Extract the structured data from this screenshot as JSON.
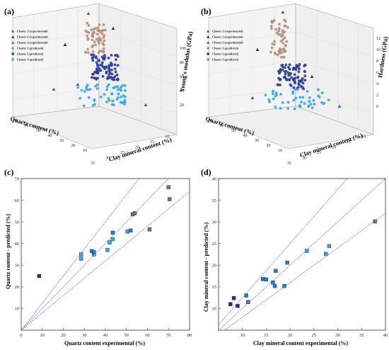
{
  "colors": {
    "cluster1_exp": "#4a5a78",
    "cluster2_exp": "#1c2f73",
    "cluster3_exp": "#1d6fa8",
    "cluster1_pred": "#b7917c",
    "cluster2_pred": "#2e3f97",
    "cluster3_pred": "#3aa8e6",
    "scatter_brown": "#8f6b5c",
    "scatter_light": "#3ba6e0",
    "scatter_mid": "#2a7fc4",
    "scatter_dark": "#1f3a77",
    "guide_line": "#4848b0",
    "box": "#999999"
  },
  "legend_labels": [
    "Cluster 1 (experimental)",
    "Cluster 2 (experimental)",
    "Cluster 3 (experimental)",
    "Cluster 1 (predicted)",
    "Cluster 2 (predicted)",
    "Cluster 3 (predicted)"
  ],
  "chart_data": [
    {
      "panel": "(a)",
      "type": "scatter",
      "dimensions": 3,
      "axes": {
        "x_label": "Quartz content (%)",
        "x_ticks": [
          "70",
          "60",
          "50",
          "40",
          "30",
          "20",
          "10"
        ],
        "y_label": "Clay mineral content (%)",
        "y_ticks": [
          "35",
          "30",
          "25",
          "20",
          "15",
          "10"
        ],
        "z_label": "Young's modulus (GPa)",
        "z_ticks": [
          "20",
          "40",
          "60",
          "80",
          "100"
        ]
      },
      "legend_placement": "top-left"
    },
    {
      "panel": "(b)",
      "type": "scatter",
      "dimensions": 3,
      "axes": {
        "x_label": "Quartz content (%)",
        "x_ticks": [
          "70",
          "60",
          "50",
          "40",
          "30",
          "20",
          "10"
        ],
        "y_label": "Clay mineral content (%)",
        "y_ticks": [
          "35",
          "30",
          "25",
          "20",
          "15",
          "10"
        ],
        "z_label": "Hardness (GPa)",
        "z_ticks": [
          "0",
          "2",
          "4",
          "6",
          "8",
          "10",
          "12"
        ]
      },
      "legend_placement": "top-left"
    },
    {
      "panel": "(c)",
      "type": "scatter",
      "xlabel": "Quartz content experimental (%)",
      "ylabel": "Quartz content - predicted (%)",
      "xlim": [
        0,
        80
      ],
      "ylim": [
        0,
        70
      ],
      "xticks": [
        0,
        10,
        20,
        30,
        40,
        50,
        60,
        70,
        80
      ],
      "yticks": [
        10,
        20,
        30,
        40,
        50,
        60,
        70
      ],
      "guide_lines_slopes": [
        1.25,
        1.0,
        0.8
      ],
      "points": [
        {
          "x": 8.5,
          "y": 25,
          "c": "dark"
        },
        {
          "x": 28.5,
          "y": 33,
          "c": "light"
        },
        {
          "x": 28.5,
          "y": 35,
          "c": "light"
        },
        {
          "x": 33.5,
          "y": 36.5,
          "c": "mid"
        },
        {
          "x": 34.5,
          "y": 35,
          "c": "light"
        },
        {
          "x": 34.5,
          "y": 36,
          "c": "mid"
        },
        {
          "x": 41,
          "y": 37,
          "c": "light"
        },
        {
          "x": 42,
          "y": 40.5,
          "c": "light"
        },
        {
          "x": 43.5,
          "y": 42,
          "c": "light"
        },
        {
          "x": 43.5,
          "y": 45,
          "c": "mid"
        },
        {
          "x": 50.5,
          "y": 45.5,
          "c": "light"
        },
        {
          "x": 52,
          "y": 46,
          "c": "mid"
        },
        {
          "x": 53,
          "y": 53.5,
          "c": "mid"
        },
        {
          "x": 54,
          "y": 54,
          "c": "brown"
        },
        {
          "x": 61,
          "y": 46.5,
          "c": "brown"
        },
        {
          "x": 70,
          "y": 66,
          "c": "brown"
        },
        {
          "x": 70.5,
          "y": 60.5,
          "c": "brown"
        }
      ]
    },
    {
      "panel": "(d)",
      "type": "scatter",
      "xlabel": "Clay mineral content experimental (%)",
      "ylabel": "Clay mineral content - predicted (%)",
      "xlim": [
        5,
        40
      ],
      "ylim": [
        5,
        40
      ],
      "xticks": [
        10,
        15,
        20,
        25,
        30,
        35,
        40
      ],
      "yticks": [
        10,
        15,
        20,
        25,
        30,
        35,
        40
      ],
      "guide_lines_slopes": [
        1.25,
        1.0,
        0.8
      ],
      "points": [
        {
          "x": 7.5,
          "y": 11,
          "c": "dark"
        },
        {
          "x": 8.2,
          "y": 12.4,
          "c": "dark"
        },
        {
          "x": 9,
          "y": 10.6,
          "c": "dark"
        },
        {
          "x": 10.8,
          "y": 13,
          "c": "mid"
        },
        {
          "x": 11.2,
          "y": 11.5,
          "c": "mid"
        },
        {
          "x": 14.3,
          "y": 16.8,
          "c": "mid"
        },
        {
          "x": 15,
          "y": 16.7,
          "c": "mid"
        },
        {
          "x": 16.4,
          "y": 16,
          "c": "mid"
        },
        {
          "x": 16.8,
          "y": 15.2,
          "c": "mid"
        },
        {
          "x": 17,
          "y": 18.7,
          "c": "mid"
        },
        {
          "x": 18.8,
          "y": 15.2,
          "c": "mid"
        },
        {
          "x": 19.4,
          "y": 20.6,
          "c": "mid"
        },
        {
          "x": 23.5,
          "y": 23.3,
          "c": "light"
        },
        {
          "x": 27.5,
          "y": 22.6,
          "c": "light"
        },
        {
          "x": 28.2,
          "y": 24.4,
          "c": "light"
        },
        {
          "x": 37.8,
          "y": 30.1,
          "c": "brown"
        }
      ]
    }
  ]
}
